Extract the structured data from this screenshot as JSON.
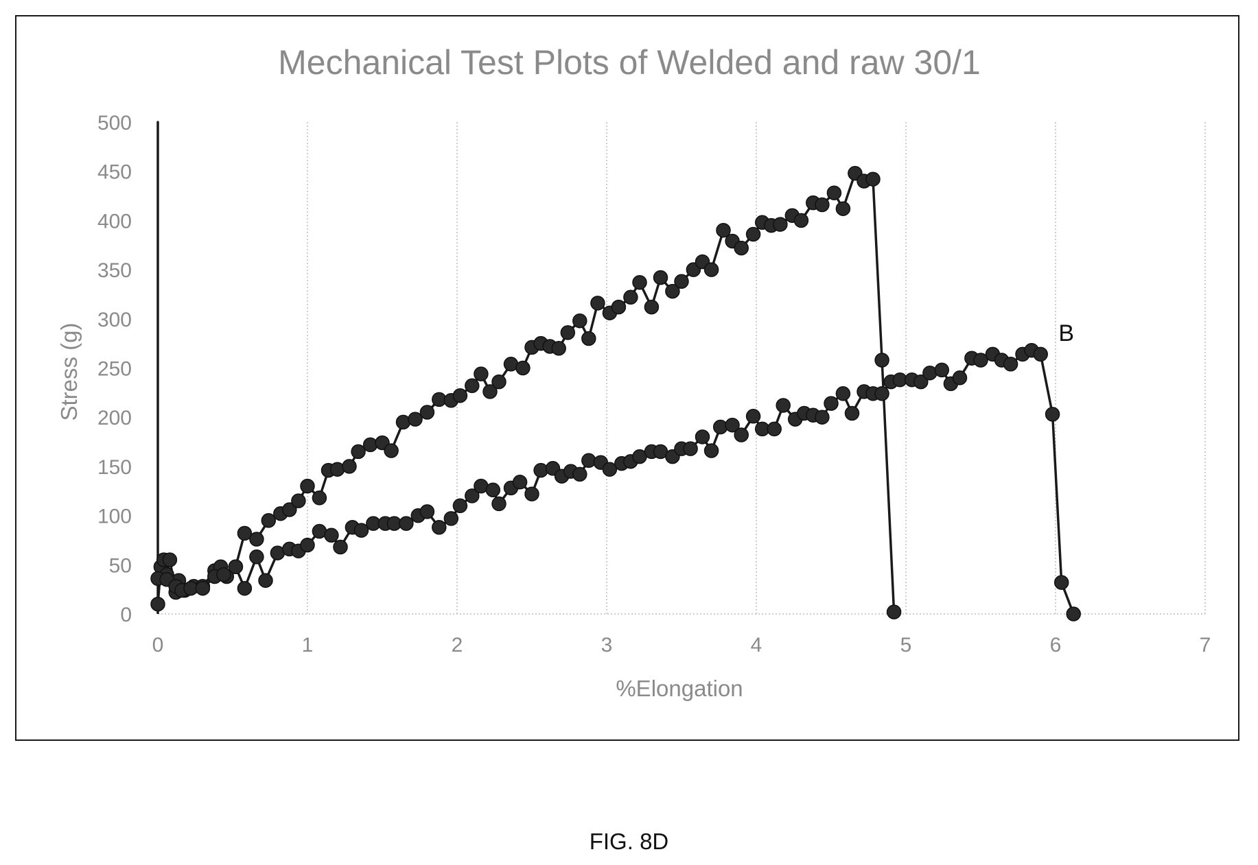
{
  "chart_data": {
    "type": "scatter",
    "title": "Mechanical Test Plots of Welded and raw 30/1",
    "xlabel": "%Elongation",
    "ylabel": "Stress (g)",
    "xlim": [
      0,
      7
    ],
    "ylim": [
      0,
      500
    ],
    "x_ticks": [
      "0",
      "1",
      "2",
      "3",
      "4",
      "5",
      "6",
      "7"
    ],
    "y_ticks": [
      "0",
      "50",
      "100",
      "150",
      "200",
      "250",
      "300",
      "350",
      "400",
      "450",
      "500"
    ],
    "grid": "vertical dotted",
    "legend": "none",
    "colors": {
      "markers": "#2a2a2a",
      "line": "#1a1a1a",
      "grid": "#bdbdbd",
      "text": "#8a8a8a"
    },
    "series": [
      {
        "points": [
          [
            0.0,
            0
          ],
          [
            0.0,
            500
          ],
          [
            0.0,
            10
          ],
          [
            0.02,
            48
          ],
          [
            0.04,
            55
          ],
          [
            0.06,
            40
          ],
          [
            0.08,
            55
          ],
          [
            0.12,
            22
          ],
          [
            0.14,
            34
          ],
          [
            0.18,
            24
          ],
          [
            0.24,
            28
          ],
          [
            0.3,
            28
          ],
          [
            0.38,
            44
          ],
          [
            0.42,
            48
          ],
          [
            0.46,
            38
          ],
          [
            0.52,
            48
          ],
          [
            0.58,
            82
          ],
          [
            0.66,
            76
          ],
          [
            0.74,
            95
          ],
          [
            0.82,
            102
          ],
          [
            0.88,
            106
          ],
          [
            0.94,
            115
          ],
          [
            1.0,
            130
          ],
          [
            1.08,
            118
          ],
          [
            1.14,
            146
          ],
          [
            1.2,
            147
          ],
          [
            1.28,
            150
          ],
          [
            1.34,
            165
          ],
          [
            1.42,
            172
          ],
          [
            1.5,
            174
          ],
          [
            1.56,
            166
          ],
          [
            1.64,
            195
          ],
          [
            1.72,
            198
          ],
          [
            1.8,
            205
          ],
          [
            1.88,
            218
          ],
          [
            1.96,
            217
          ],
          [
            2.02,
            222
          ],
          [
            2.1,
            232
          ],
          [
            2.16,
            244
          ],
          [
            2.22,
            226
          ],
          [
            2.28,
            236
          ],
          [
            2.36,
            254
          ],
          [
            2.44,
            250
          ],
          [
            2.5,
            271
          ],
          [
            2.56,
            275
          ],
          [
            2.62,
            272
          ],
          [
            2.68,
            270
          ],
          [
            2.74,
            286
          ],
          [
            2.82,
            298
          ],
          [
            2.88,
            280
          ],
          [
            2.94,
            316
          ],
          [
            3.02,
            306
          ],
          [
            3.08,
            312
          ],
          [
            3.16,
            322
          ],
          [
            3.22,
            337
          ],
          [
            3.3,
            312
          ],
          [
            3.36,
            342
          ],
          [
            3.44,
            328
          ],
          [
            3.5,
            338
          ],
          [
            3.58,
            350
          ],
          [
            3.64,
            358
          ],
          [
            3.7,
            350
          ],
          [
            3.78,
            390
          ],
          [
            3.84,
            379
          ],
          [
            3.9,
            372
          ],
          [
            3.98,
            386
          ],
          [
            4.04,
            398
          ],
          [
            4.1,
            395
          ],
          [
            4.16,
            396
          ],
          [
            4.24,
            405
          ],
          [
            4.3,
            400
          ],
          [
            4.38,
            418
          ],
          [
            4.44,
            416
          ],
          [
            4.52,
            428
          ],
          [
            4.58,
            412
          ],
          [
            4.66,
            448
          ],
          [
            4.72,
            440
          ],
          [
            4.78,
            442
          ],
          [
            4.84,
            258
          ],
          [
            4.92,
            2
          ]
        ]
      },
      {
        "points": [
          [
            0.0,
            36
          ],
          [
            0.06,
            35
          ],
          [
            0.12,
            28
          ],
          [
            0.16,
            24
          ],
          [
            0.22,
            26
          ],
          [
            0.3,
            26
          ],
          [
            0.38,
            38
          ],
          [
            0.44,
            40
          ],
          [
            0.52,
            48
          ],
          [
            0.58,
            26
          ],
          [
            0.66,
            58
          ],
          [
            0.72,
            34
          ],
          [
            0.8,
            62
          ],
          [
            0.88,
            66
          ],
          [
            0.94,
            64
          ],
          [
            1.0,
            70
          ],
          [
            1.08,
            84
          ],
          [
            1.16,
            80
          ],
          [
            1.22,
            68
          ],
          [
            1.3,
            88
          ],
          [
            1.36,
            85
          ],
          [
            1.44,
            92
          ],
          [
            1.52,
            92
          ],
          [
            1.58,
            92
          ],
          [
            1.66,
            92
          ],
          [
            1.74,
            100
          ],
          [
            1.8,
            104
          ],
          [
            1.88,
            88
          ],
          [
            1.96,
            97
          ],
          [
            2.02,
            110
          ],
          [
            2.1,
            120
          ],
          [
            2.16,
            130
          ],
          [
            2.24,
            126
          ],
          [
            2.28,
            112
          ],
          [
            2.36,
            128
          ],
          [
            2.42,
            134
          ],
          [
            2.5,
            122
          ],
          [
            2.56,
            146
          ],
          [
            2.64,
            148
          ],
          [
            2.7,
            140
          ],
          [
            2.76,
            145
          ],
          [
            2.82,
            142
          ],
          [
            2.88,
            156
          ],
          [
            2.96,
            154
          ],
          [
            3.02,
            147
          ],
          [
            3.1,
            153
          ],
          [
            3.16,
            155
          ],
          [
            3.22,
            160
          ],
          [
            3.3,
            165
          ],
          [
            3.36,
            165
          ],
          [
            3.44,
            160
          ],
          [
            3.5,
            168
          ],
          [
            3.56,
            168
          ],
          [
            3.64,
            180
          ],
          [
            3.7,
            166
          ],
          [
            3.76,
            190
          ],
          [
            3.84,
            192
          ],
          [
            3.9,
            182
          ],
          [
            3.98,
            201
          ],
          [
            4.04,
            188
          ],
          [
            4.12,
            188
          ],
          [
            4.18,
            212
          ],
          [
            4.26,
            198
          ],
          [
            4.32,
            204
          ],
          [
            4.38,
            202
          ],
          [
            4.44,
            200
          ],
          [
            4.5,
            214
          ],
          [
            4.58,
            224
          ],
          [
            4.64,
            204
          ],
          [
            4.72,
            226
          ],
          [
            4.78,
            224
          ],
          [
            4.84,
            224
          ],
          [
            4.9,
            236
          ],
          [
            4.96,
            238
          ],
          [
            5.04,
            238
          ],
          [
            5.1,
            236
          ],
          [
            5.16,
            245
          ],
          [
            5.24,
            248
          ],
          [
            5.3,
            234
          ],
          [
            5.36,
            240
          ],
          [
            5.44,
            260
          ],
          [
            5.5,
            258
          ],
          [
            5.58,
            264
          ],
          [
            5.64,
            258
          ],
          [
            5.7,
            254
          ],
          [
            5.78,
            264
          ],
          [
            5.84,
            268
          ],
          [
            5.9,
            264
          ],
          [
            5.98,
            203
          ],
          [
            6.04,
            32
          ],
          [
            6.12,
            0
          ]
        ]
      }
    ],
    "annotations": [
      {
        "text": "B",
        "x": 6.02,
        "y": 286
      }
    ]
  },
  "caption": "FIG. 8D"
}
